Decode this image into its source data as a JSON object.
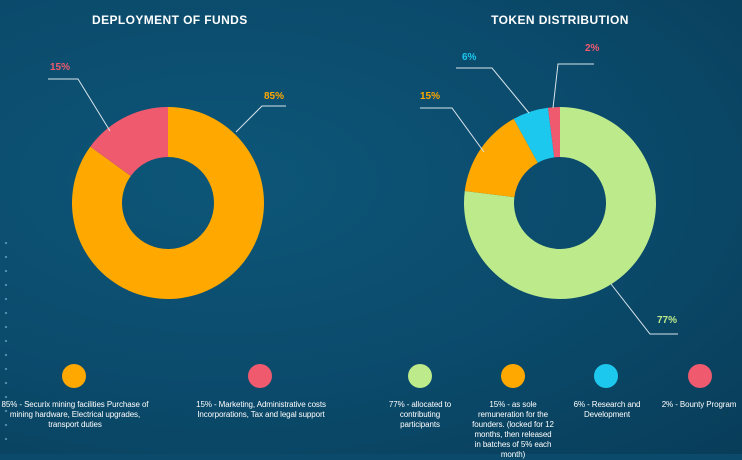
{
  "chart_data": [
    {
      "type": "pie",
      "title": "DEPLOYMENT OF FUNDS",
      "categories": [
        "85%",
        "15%"
      ],
      "values": [
        85,
        15
      ],
      "colors": [
        "#ffa800",
        "#ef5a6f"
      ],
      "label_colors": [
        "#ffa800",
        "#ef5a6f"
      ],
      "legend": [
        {
          "text": "85% - Securix mining facilities Purchase of mining hardware, Electrical upgrades, transport duties",
          "color": "#ffa800"
        },
        {
          "text": "15% - Marketing, Administrative costs Incorporations, Tax and legal support",
          "color": "#ef5a6f"
        }
      ]
    },
    {
      "type": "pie",
      "title": "TOKEN DISTRIBUTION",
      "categories": [
        "77%",
        "15%",
        "6%",
        "2%"
      ],
      "values": [
        77,
        15,
        6,
        2
      ],
      "colors": [
        "#bdeb8c",
        "#ffa800",
        "#1dc8ee",
        "#ef5a6f"
      ],
      "label_colors": [
        "#bdeb8c",
        "#ffa800",
        "#1dc8ee",
        "#ef5a6f"
      ],
      "legend": [
        {
          "text": "77% - allocated to contributing participants",
          "color": "#bdeb8c"
        },
        {
          "text": "15% - as sole remuneration for the founders. (locked for 12 months, then released in batches of 5% each month)",
          "color": "#ffa800"
        },
        {
          "text": "6% - Research and Development",
          "color": "#1dc8ee"
        },
        {
          "text": "2% - Bounty Program",
          "color": "#ef5a6f"
        }
      ]
    }
  ]
}
